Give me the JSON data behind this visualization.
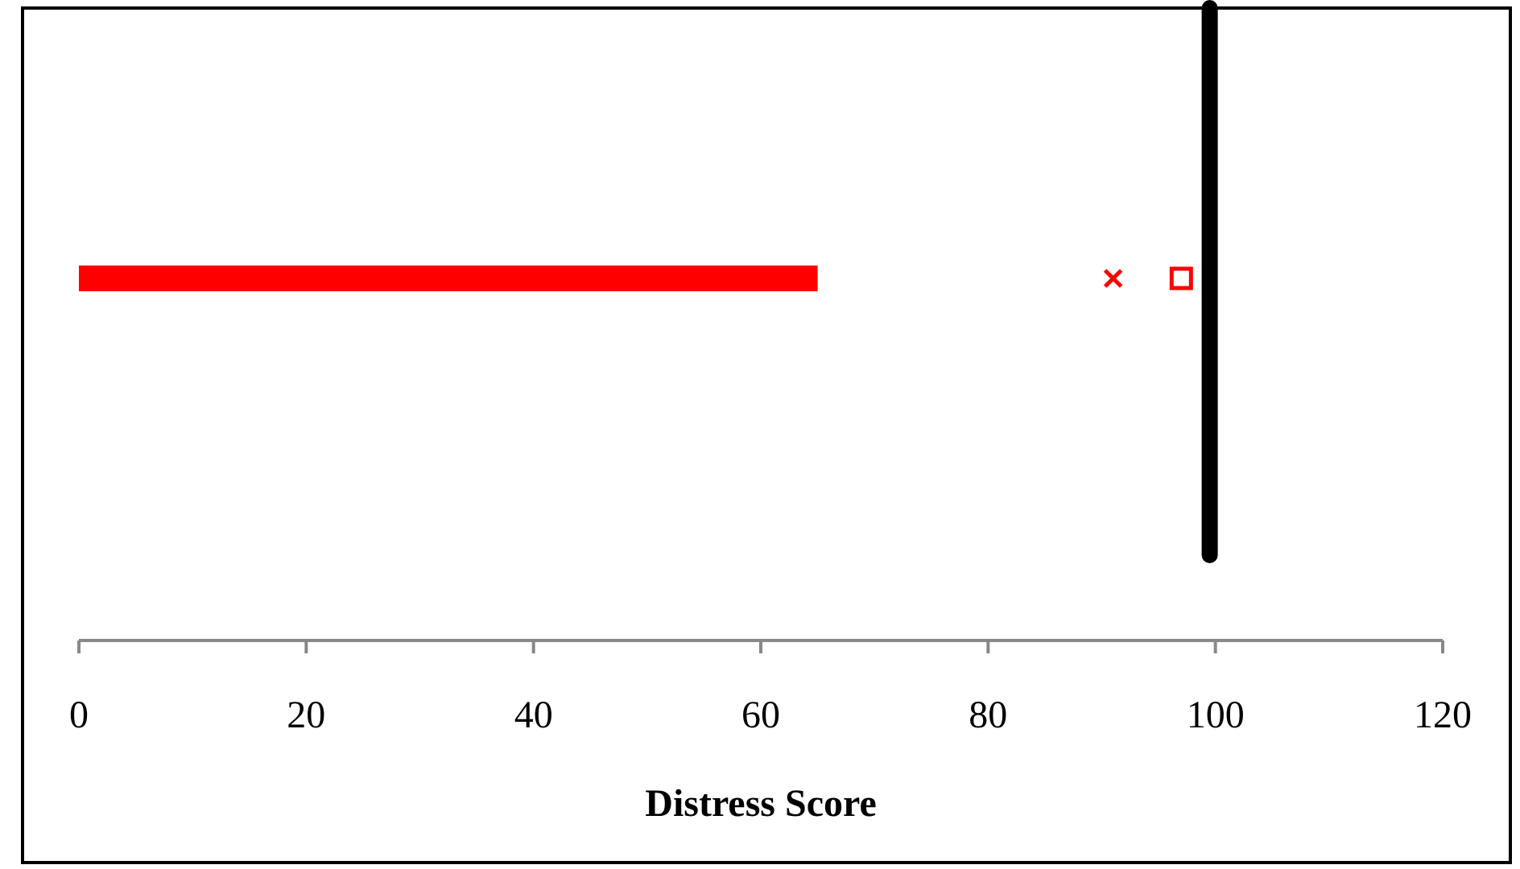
{
  "chart_data": {
    "type": "bar",
    "orientation": "horizontal",
    "xlabel": "Distress Score",
    "categories": [
      null
    ],
    "series": [
      {
        "color": "#ff0000",
        "values": [
          65
        ]
      },
      {
        "type": "scatter",
        "marker": "cross",
        "color": "#ff0000",
        "values": [
          91
        ]
      },
      {
        "type": "scatter",
        "marker": "square",
        "color": "#ff0000",
        "values": [
          97
        ]
      }
    ],
    "xlim": [
      0,
      120
    ],
    "xticks": [
      0,
      20,
      40,
      60,
      80,
      100,
      120
    ],
    "ref_lines": [
      {
        "axis": "x",
        "value": 99.5,
        "color": "#000000"
      }
    ],
    "grid": false
  }
}
